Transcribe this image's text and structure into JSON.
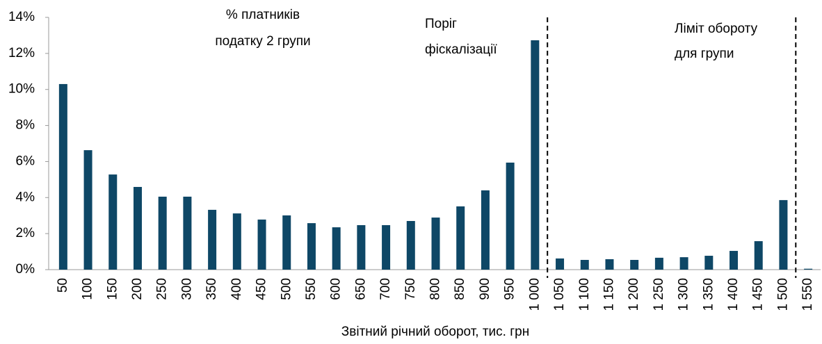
{
  "chart_data": {
    "type": "bar",
    "x_label": "Звітний річний оборот, тис. грн",
    "annotations": [
      {
        "lines": [
          "% платників",
          "податку 2 групи"
        ]
      },
      {
        "lines": [
          "Поріг",
          "фіскалізації"
        ]
      },
      {
        "lines": [
          "Ліміт обороту",
          "для групи"
        ]
      }
    ],
    "categories": [
      "50",
      "100",
      "150",
      "200",
      "250",
      "300",
      "350",
      "400",
      "450",
      "500",
      "550",
      "600",
      "650",
      "700",
      "750",
      "800",
      "850",
      "900",
      "950",
      "1 000",
      "1 050",
      "1 100",
      "1 150",
      "1 200",
      "1 250",
      "1 300",
      "1 350",
      "1 400",
      "1 450",
      "1 500",
      "1 550"
    ],
    "values": [
      10.3,
      6.63,
      5.28,
      4.59,
      4.05,
      4.05,
      3.32,
      3.12,
      2.78,
      3.01,
      2.58,
      2.35,
      2.47,
      2.47,
      2.7,
      2.89,
      3.51,
      4.4,
      5.94,
      12.73,
      0.62,
      0.54,
      0.58,
      0.54,
      0.66,
      0.69,
      0.77,
      1.04,
      1.58,
      3.86,
      0.05
    ],
    "color": "#0e4766",
    "ylim": [
      0,
      14
    ],
    "yticks": [
      {
        "value": 0,
        "label": "0%"
      },
      {
        "value": 2,
        "label": "2%"
      },
      {
        "value": 4,
        "label": "4%"
      },
      {
        "value": 6,
        "label": "6%"
      },
      {
        "value": 8,
        "label": "8%"
      },
      {
        "value": 10,
        "label": "10%"
      },
      {
        "value": 12,
        "label": "12%"
      },
      {
        "value": 14,
        "label": "14%"
      }
    ],
    "grid": false
  }
}
